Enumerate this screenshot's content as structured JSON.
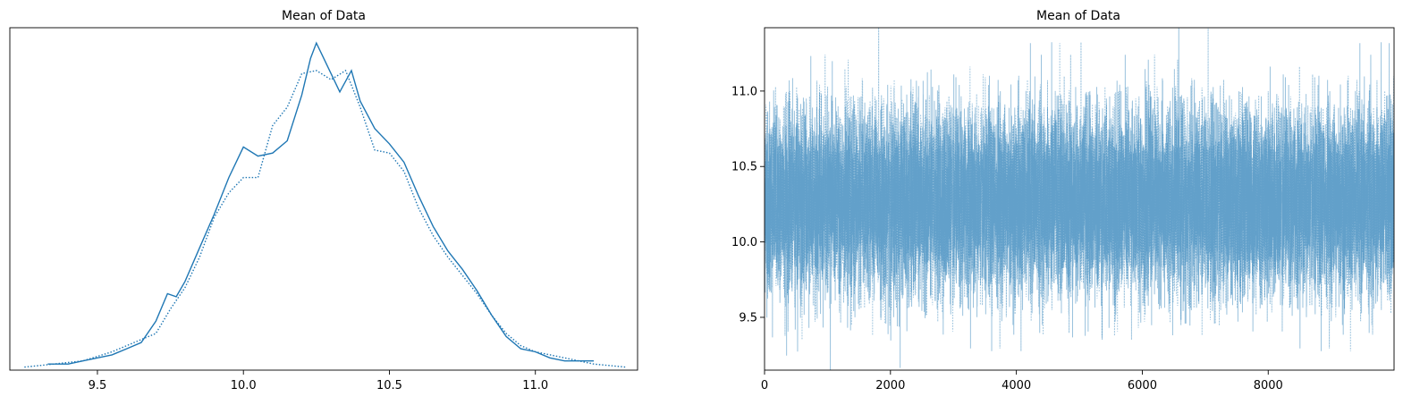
{
  "chart_data": [
    {
      "type": "line",
      "title": "Mean of Data",
      "xlabel": "",
      "ylabel": "",
      "xlim": [
        9.2,
        11.35
      ],
      "ylim": [
        0,
        1.12
      ],
      "xticks": [
        9.5,
        10.0,
        10.5,
        11.0
      ],
      "xtick_labels": [
        "9.5",
        "10.0",
        "10.5",
        "11.0"
      ],
      "yticks": [],
      "grid": false,
      "series": [
        {
          "style": "solid",
          "color": "#1f77b4",
          "x": [
            9.33,
            9.4,
            9.45,
            9.5,
            9.55,
            9.6,
            9.65,
            9.7,
            9.74,
            9.77,
            9.8,
            9.85,
            9.9,
            9.95,
            10.0,
            10.05,
            10.1,
            10.15,
            10.2,
            10.23,
            10.25,
            10.27,
            10.3,
            10.33,
            10.37,
            10.4,
            10.45,
            10.5,
            10.55,
            10.6,
            10.65,
            10.7,
            10.75,
            10.8,
            10.85,
            10.9,
            10.95,
            11.0,
            11.05,
            11.1,
            11.15,
            11.2
          ],
          "y": [
            0.02,
            0.02,
            0.03,
            0.04,
            0.05,
            0.07,
            0.09,
            0.16,
            0.25,
            0.24,
            0.29,
            0.4,
            0.51,
            0.63,
            0.73,
            0.7,
            0.71,
            0.75,
            0.9,
            1.02,
            1.07,
            1.03,
            0.97,
            0.91,
            0.98,
            0.88,
            0.79,
            0.74,
            0.68,
            0.57,
            0.47,
            0.39,
            0.33,
            0.26,
            0.18,
            0.11,
            0.07,
            0.06,
            0.04,
            0.03,
            0.03,
            0.03
          ]
        },
        {
          "style": "dotted",
          "color": "#1f77b4",
          "x": [
            9.25,
            9.35,
            9.45,
            9.55,
            9.65,
            9.7,
            9.75,
            9.8,
            9.85,
            9.9,
            9.95,
            10.0,
            10.05,
            10.1,
            10.15,
            10.2,
            10.25,
            10.3,
            10.35,
            10.4,
            10.45,
            10.5,
            10.55,
            10.6,
            10.65,
            10.7,
            10.75,
            10.8,
            10.85,
            10.9,
            10.95,
            11.0,
            11.1,
            11.2,
            11.31
          ],
          "y": [
            0.01,
            0.02,
            0.03,
            0.06,
            0.1,
            0.12,
            0.2,
            0.27,
            0.37,
            0.5,
            0.58,
            0.63,
            0.63,
            0.8,
            0.86,
            0.97,
            0.98,
            0.95,
            0.98,
            0.86,
            0.72,
            0.71,
            0.65,
            0.53,
            0.44,
            0.37,
            0.31,
            0.25,
            0.18,
            0.12,
            0.08,
            0.06,
            0.04,
            0.02,
            0.01
          ]
        }
      ]
    },
    {
      "type": "line",
      "title": "Mean of Data",
      "xlabel": "",
      "ylabel": "",
      "xlim": [
        0,
        9999
      ],
      "ylim": [
        9.15,
        11.42
      ],
      "xticks": [
        0,
        2000,
        4000,
        6000,
        8000
      ],
      "xtick_labels": [
        "0",
        "2000",
        "4000",
        "6000",
        "8000"
      ],
      "yticks": [
        9.5,
        10.0,
        10.5,
        11.0
      ],
      "ytick_labels": [
        "9.5",
        "10.0",
        "10.5",
        "11.0"
      ],
      "grid": false,
      "trace_center": 10.27,
      "trace_spread": 0.3,
      "trace_points": 10000,
      "series": [
        {
          "style": "solid",
          "color": "#1f77b4",
          "alpha": 0.45
        },
        {
          "style": "dotted",
          "color": "#1f77b4",
          "alpha": 0.45
        }
      ]
    }
  ]
}
